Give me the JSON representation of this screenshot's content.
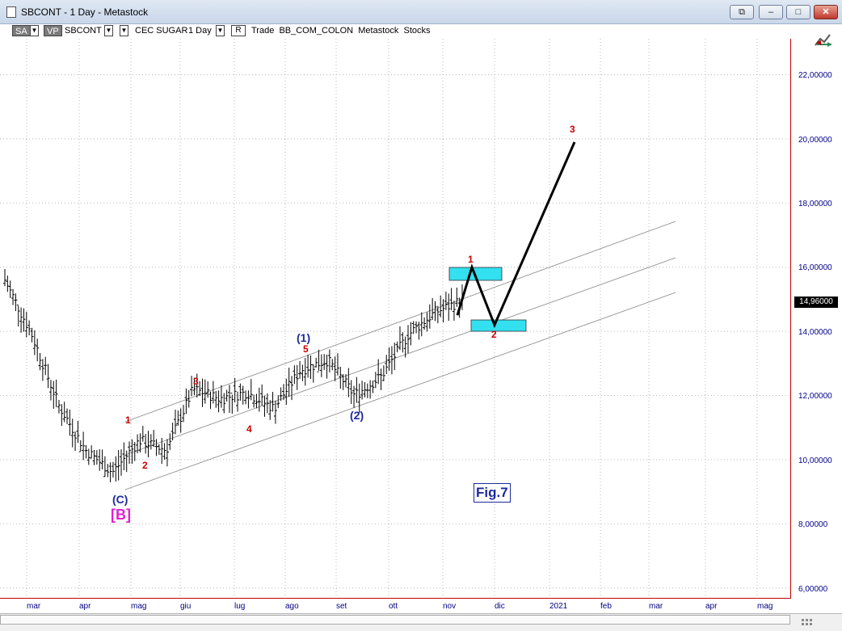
{
  "window": {
    "title": "SBCONT - 1 Day - Metastock",
    "buttons": {
      "restore": "⧉",
      "minimize": "–",
      "maximize": "□",
      "close": "✕"
    }
  },
  "toolbar": {
    "sa": "SA",
    "vp": "VP",
    "symbol": "SBCONT",
    "name": "CEC SUGAR",
    "period": "1 Day",
    "r": "R",
    "info": "Trade  BB_COM_COLON  Metastock  Stocks"
  },
  "price_axis": {
    "labels": [
      "22,00000",
      "20,00000",
      "18,00000",
      "16,00000",
      "14,00000",
      "12,00000",
      "10,00000",
      "8,00000",
      "6,00000"
    ],
    "last_price": "14,96000"
  },
  "time_axis": {
    "labels": [
      "mar",
      "apr",
      "mag",
      "giu",
      "lug",
      "ago",
      "set",
      "ott",
      "nov",
      "dic",
      "2021",
      "feb",
      "mar",
      "apr",
      "mag"
    ]
  },
  "annotations": {
    "wave_1_small": "1",
    "wave_2_small": "2",
    "wave_3_small": "3",
    "wave_4_small": "4",
    "wave_5_small": "5",
    "wave_1_major": "(1)",
    "wave_2_major": "(2)",
    "wave_c": "(C)",
    "wave_b": "[B]",
    "proj_1": "1",
    "proj_2": "2",
    "proj_3": "3",
    "figure": "Fig.7"
  },
  "colors": {
    "axis": "#c00000",
    "price_labels": "#00008b",
    "small_waves": "#cc0000",
    "major_waves": "#1c2a9e",
    "wave_b": "#e020d0",
    "target_boxes": "#33e0f0"
  },
  "chart_data": {
    "type": "bar",
    "series": [
      {
        "x": [
          "feb",
          "mar",
          "mar",
          "apr",
          "apr",
          "mag",
          "mag",
          "giu",
          "giu",
          "lug",
          "lug",
          "ago",
          "ago",
          "set",
          "set",
          "ott",
          "ott",
          "nov"
        ],
        "close": [
          15.6,
          13.9,
          11.7,
          10.3,
          9.6,
          10.6,
          10.3,
          12.2,
          11.9,
          12.1,
          11.6,
          12.8,
          13.1,
          12.0,
          12.6,
          13.9,
          14.6,
          14.96
        ]
      }
    ],
    "projection": {
      "points": [
        {
          "label": "",
          "value": 14.5
        },
        {
          "label": "1",
          "value": 16.0
        },
        {
          "label": "2",
          "value": 14.2
        },
        {
          "label": "3",
          "value": 19.9
        }
      ]
    },
    "yrange": [
      5.6,
      23.2
    ],
    "grid": "dotted"
  }
}
